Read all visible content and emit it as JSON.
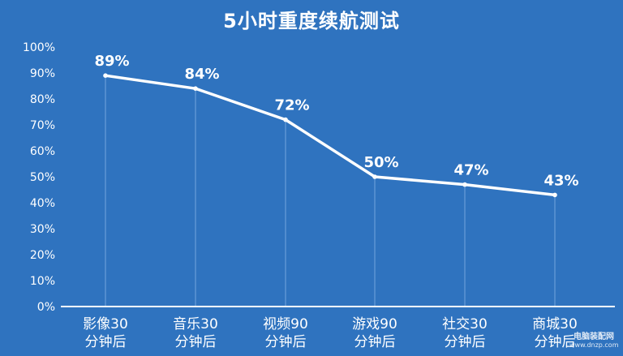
{
  "colors": {
    "background": "#2f73bf",
    "line": "#ffffff",
    "text": "#ffffff",
    "grid": "#8bb6e6",
    "axis": "#ffffff"
  },
  "chart_data": {
    "type": "line",
    "title": "5小时重度续航测试",
    "categories": [
      "影像30\n分钟后",
      "音乐30\n分钟后",
      "视频90\n分钟后",
      "游戏90\n分钟后",
      "社交30\n分钟后",
      "商城30\n分钟后"
    ],
    "values": [
      89,
      84,
      72,
      50,
      47,
      43
    ],
    "data_labels": [
      "89%",
      "84%",
      "72%",
      "50%",
      "47%",
      "43%"
    ],
    "ylim": [
      0,
      100
    ],
    "yticks": [
      0,
      10,
      20,
      30,
      40,
      50,
      60,
      70,
      80,
      90,
      100
    ],
    "ytick_labels": [
      "0%",
      "10%",
      "20%",
      "30%",
      "40%",
      "50%",
      "60%",
      "70%",
      "80%",
      "90%",
      "100%"
    ],
    "grid": false,
    "legend": "none"
  },
  "watermark": {
    "line1": "电脑装配网",
    "line2": "www.dnzp.com"
  }
}
